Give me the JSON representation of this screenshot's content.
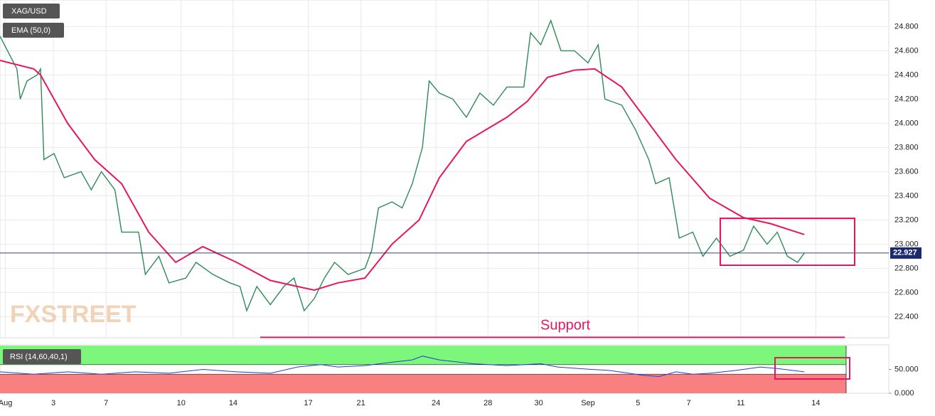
{
  "chart_data": [
    {
      "type": "line",
      "title": "XAG/USD",
      "watermark": "FXSTREET",
      "xlim": [
        0,
        263
      ],
      "xticks": [
        {
          "value": 1.6,
          "label": "Aug"
        },
        {
          "value": 15.8,
          "label": "3"
        },
        {
          "value": 31.4,
          "label": "7"
        },
        {
          "value": 53.6,
          "label": "10"
        },
        {
          "value": 69,
          "label": "14"
        },
        {
          "value": 91.2,
          "label": "17"
        },
        {
          "value": 106.8,
          "label": "21"
        },
        {
          "value": 129,
          "label": "24"
        },
        {
          "value": 144.4,
          "label": "28"
        },
        {
          "value": 159.4,
          "label": "30"
        },
        {
          "value": 174,
          "label": "Sep"
        },
        {
          "value": 188.8,
          "label": "5"
        },
        {
          "value": 203.8,
          "label": "7"
        },
        {
          "value": 219.2,
          "label": "11"
        },
        {
          "value": 241.4,
          "label": "14"
        }
      ],
      "ylim": [
        22.226,
        25.02
      ],
      "yticks": [
        {
          "value": 22.4,
          "label": "22.400"
        },
        {
          "value": 22.6,
          "label": "22.600"
        },
        {
          "value": 22.8,
          "label": "22.800"
        },
        {
          "value": 23.0,
          "label": "23.000"
        },
        {
          "value": 23.2,
          "label": "23.200"
        },
        {
          "value": 23.4,
          "label": "23.400"
        },
        {
          "value": 23.6,
          "label": "23.600"
        },
        {
          "value": 23.8,
          "label": "23.800"
        },
        {
          "value": 24.0,
          "label": "24.000"
        },
        {
          "value": 24.2,
          "label": "24.200"
        },
        {
          "value": 24.4,
          "label": "24.400"
        },
        {
          "value": 24.6,
          "label": "24.600"
        },
        {
          "value": 24.8,
          "label": "24.800"
        }
      ],
      "grid": true,
      "last_price": {
        "value": 22.927,
        "label": "22.927",
        "color": "#1a2a6c"
      },
      "support": {
        "label": "Support",
        "value": 22.23,
        "x": [
          77,
          250
        ],
        "color": "#e8175d"
      },
      "series": [
        {
          "name": "XAG/USD",
          "color": "#2e8b57",
          "x": [
            0,
            5,
            6,
            8,
            11,
            12,
            13,
            16,
            19,
            24,
            27,
            30,
            34,
            36,
            41,
            43,
            47,
            50,
            55,
            58,
            63,
            68,
            71,
            73,
            76,
            80,
            84,
            87,
            90,
            93,
            96,
            99,
            103,
            108,
            110,
            112,
            116,
            119,
            122,
            125,
            127,
            130,
            134,
            138,
            142,
            146,
            150,
            155,
            157,
            160,
            163,
            166,
            170,
            174,
            177,
            179,
            184,
            188,
            192,
            194,
            198,
            201,
            205,
            208,
            212,
            216,
            220,
            223,
            227,
            230,
            233,
            236,
            238
          ],
          "values": [
            24.72,
            24.45,
            24.2,
            24.35,
            24.4,
            24.45,
            23.7,
            23.75,
            23.55,
            23.6,
            23.45,
            23.6,
            23.45,
            23.1,
            23.1,
            22.75,
            22.9,
            22.68,
            22.72,
            22.85,
            22.75,
            22.68,
            22.65,
            22.45,
            22.65,
            22.5,
            22.65,
            22.72,
            22.45,
            22.55,
            22.72,
            22.85,
            22.75,
            22.8,
            22.95,
            23.3,
            23.35,
            23.3,
            23.5,
            23.8,
            24.35,
            24.25,
            24.2,
            24.05,
            24.25,
            24.15,
            24.3,
            24.3,
            24.75,
            24.65,
            24.85,
            24.6,
            24.6,
            24.5,
            24.65,
            24.2,
            24.15,
            23.95,
            23.7,
            23.5,
            23.55,
            23.05,
            23.1,
            22.9,
            23.05,
            22.9,
            22.95,
            23.15,
            23.0,
            23.1,
            22.9,
            22.85,
            22.927
          ]
        },
        {
          "name": "EMA (50,0)",
          "color": "#e8175d",
          "x": [
            0,
            10,
            12,
            20,
            28,
            36,
            44,
            52,
            60,
            70,
            80,
            88,
            93,
            100,
            108,
            116,
            124,
            130,
            138,
            150,
            156,
            162,
            170,
            176,
            184,
            192,
            200,
            210,
            220,
            228,
            238
          ],
          "values": [
            24.52,
            24.45,
            24.4,
            24.0,
            23.7,
            23.5,
            23.1,
            22.85,
            22.98,
            22.85,
            22.7,
            22.65,
            22.62,
            22.68,
            22.72,
            23.0,
            23.2,
            23.55,
            23.85,
            24.05,
            24.18,
            24.38,
            24.44,
            24.45,
            24.3,
            24.0,
            23.7,
            23.38,
            23.22,
            23.17,
            23.08
          ]
        }
      ]
    },
    {
      "type": "line",
      "title": "RSI (14,60,40,1)",
      "xlim": [
        0,
        263
      ],
      "ylim": [
        0,
        100
      ],
      "yticks": [
        {
          "value": 0,
          "label": "0.000"
        },
        {
          "value": 50,
          "label": "50.000"
        }
      ],
      "zones": [
        {
          "from": 60,
          "to": 100,
          "color": "#7cf77c"
        },
        {
          "from": 0,
          "to": 40,
          "color": "#f98080"
        }
      ],
      "series": [
        {
          "name": "RSI",
          "color": "#2040d0",
          "x": [
            0,
            10,
            20,
            30,
            40,
            50,
            60,
            70,
            80,
            88,
            95,
            100,
            108,
            116,
            122,
            125,
            130,
            140,
            150,
            160,
            165,
            175,
            180,
            190,
            195,
            200,
            205,
            210,
            218,
            225,
            230,
            238
          ],
          "values": [
            45,
            40,
            45,
            40,
            45,
            42,
            50,
            45,
            42,
            55,
            60,
            55,
            58,
            65,
            70,
            78,
            70,
            62,
            58,
            62,
            55,
            50,
            48,
            38,
            35,
            45,
            40,
            42,
            48,
            55,
            52,
            45
          ]
        }
      ]
    }
  ]
}
